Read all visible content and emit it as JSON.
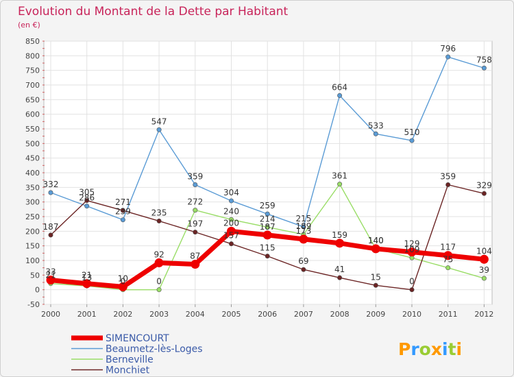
{
  "chart_data": {
    "type": "line",
    "title": "Evolution du Montant de la Dette par Habitant",
    "subtitle": "(en €)",
    "xlabel": "",
    "ylabel": "",
    "ylim": [
      -50,
      850
    ],
    "y_ticks": [
      -50,
      0,
      50,
      100,
      150,
      200,
      250,
      300,
      350,
      400,
      450,
      500,
      550,
      600,
      650,
      700,
      750,
      800,
      850
    ],
    "categories": [
      "2000",
      "2001",
      "2002",
      "2003",
      "2004",
      "2005",
      "2006",
      "2007",
      "2008",
      "2009",
      "2010",
      "2011",
      "2012"
    ],
    "grid": true,
    "legend_position": "bottom-left",
    "series": [
      {
        "name": "SIMENCOURT",
        "color": "#ee0000",
        "values": [
          33,
          21,
          10,
          92,
          87,
          200,
          187,
          173,
          159,
          140,
          129,
          117,
          104
        ]
      },
      {
        "name": "Beaumetz-lès-Loges",
        "color": "#5a9bd5",
        "values": [
          332,
          286,
          239,
          547,
          359,
          304,
          259,
          215,
          664,
          533,
          510,
          796,
          758
        ]
      },
      {
        "name": "Berneville",
        "color": "#99dd66",
        "values": [
          21,
          13,
          0,
          0,
          272,
          240,
          214,
          189,
          361,
          140,
          109,
          75,
          39
        ]
      },
      {
        "name": "Monchiet",
        "color": "#6b2424",
        "values": [
          187,
          305,
          271,
          235,
          197,
          157,
          115,
          69,
          41,
          15,
          0,
          359,
          329
        ]
      }
    ],
    "data_labels": [
      [
        "33",
        "21",
        "10",
        "92",
        "87",
        "200",
        "187",
        "173",
        "159",
        "140",
        "129",
        "117",
        "104"
      ],
      [
        "332",
        "286",
        "239",
        "547",
        "359",
        "304",
        "259",
        "215",
        "664",
        "533",
        "510",
        "796",
        "758"
      ],
      [
        "21",
        "13",
        "0",
        "0",
        "272",
        "240",
        "214",
        "189",
        "361",
        "140",
        "109",
        "75",
        "39"
      ],
      [
        "187",
        "305",
        "271",
        "235",
        "197",
        "157",
        "115",
        "69",
        "41",
        "15",
        "0",
        "359",
        "329"
      ]
    ]
  },
  "brand": {
    "text": "Proxiti",
    "letters": [
      "P",
      "r",
      "o",
      "x",
      "i",
      "t",
      "i"
    ],
    "colors": [
      "#ff9900",
      "#3399ff",
      "#99cc33",
      "#ff9900",
      "#3399ff",
      "#99cc33",
      "#ff9900"
    ]
  }
}
